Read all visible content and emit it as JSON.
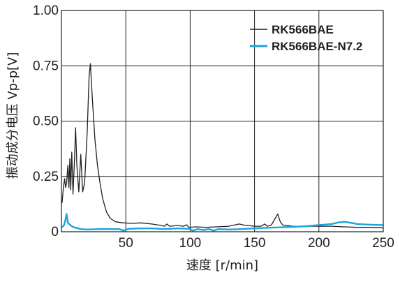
{
  "chart_data": {
    "type": "line",
    "title": "",
    "xlabel": "速度 [r/min]",
    "ylabel": "振动成分电压 Vp-p[V]",
    "xlim": [
      0,
      250
    ],
    "ylim": [
      0,
      1.0
    ],
    "x_ticks": [
      0,
      50,
      100,
      150,
      200,
      250
    ],
    "x_tick_labels": [
      "",
      "50",
      "100",
      "150",
      "200",
      "250"
    ],
    "y_ticks": [
      0,
      0.25,
      0.5,
      0.75,
      1.0
    ],
    "y_tick_labels": [
      "0",
      "0.25",
      "0.50",
      "0.75",
      "1.00"
    ],
    "grid": true,
    "legend_position": "top-right",
    "series": [
      {
        "name": "RK566BAE",
        "color": "#231f20",
        "points": [
          [
            0.5,
            0.13
          ],
          [
            1.5,
            0.2
          ],
          [
            2.5,
            0.24
          ],
          [
            3.2,
            0.2
          ],
          [
            4,
            0.22
          ],
          [
            5,
            0.3
          ],
          [
            5.8,
            0.2
          ],
          [
            6.5,
            0.33
          ],
          [
            7.2,
            0.19
          ],
          [
            8,
            0.36
          ],
          [
            9,
            0.17
          ],
          [
            10,
            0.3
          ],
          [
            11,
            0.47
          ],
          [
            12,
            0.3
          ],
          [
            13.5,
            0.18
          ],
          [
            15,
            0.35
          ],
          [
            16.5,
            0.18
          ],
          [
            18,
            0.22
          ],
          [
            20,
            0.45
          ],
          [
            21.5,
            0.7
          ],
          [
            22.5,
            0.76
          ],
          [
            24,
            0.6
          ],
          [
            26,
            0.42
          ],
          [
            28,
            0.3
          ],
          [
            30,
            0.22
          ],
          [
            32,
            0.15
          ],
          [
            35,
            0.09
          ],
          [
            38,
            0.06
          ],
          [
            42,
            0.045
          ],
          [
            48,
            0.04
          ],
          [
            55,
            0.038
          ],
          [
            62,
            0.04
          ],
          [
            70,
            0.035
          ],
          [
            76,
            0.03
          ],
          [
            80,
            0.025
          ],
          [
            82,
            0.035
          ],
          [
            84,
            0.025
          ],
          [
            90,
            0.028
          ],
          [
            95,
            0.025
          ],
          [
            97,
            0.032
          ],
          [
            99,
            0.02
          ],
          [
            105,
            0.022
          ],
          [
            112,
            0.02
          ],
          [
            120,
            0.022
          ],
          [
            130,
            0.025
          ],
          [
            138,
            0.035
          ],
          [
            142,
            0.03
          ],
          [
            150,
            0.025
          ],
          [
            155,
            0.025
          ],
          [
            158,
            0.035
          ],
          [
            160,
            0.025
          ],
          [
            163,
            0.03
          ],
          [
            166,
            0.06
          ],
          [
            168,
            0.08
          ],
          [
            170,
            0.045
          ],
          [
            172,
            0.03
          ],
          [
            180,
            0.025
          ],
          [
            190,
            0.025
          ],
          [
            200,
            0.025
          ],
          [
            210,
            0.025
          ],
          [
            220,
            0.022
          ],
          [
            230,
            0.02
          ],
          [
            240,
            0.02
          ],
          [
            250,
            0.018
          ]
        ]
      },
      {
        "name": "RK566BAE-N7.2",
        "color": "#1ba3de",
        "points": [
          [
            0.5,
            0.02
          ],
          [
            2,
            0.03
          ],
          [
            3,
            0.05
          ],
          [
            4,
            0.08
          ],
          [
            5,
            0.04
          ],
          [
            6,
            0.035
          ],
          [
            8,
            0.025
          ],
          [
            10,
            0.02
          ],
          [
            15,
            0.012
          ],
          [
            20,
            0.01
          ],
          [
            30,
            0.012
          ],
          [
            45,
            0.012
          ],
          [
            48,
            0.005
          ],
          [
            52,
            0.013
          ],
          [
            60,
            0.015
          ],
          [
            70,
            0.015
          ],
          [
            80,
            0.012
          ],
          [
            90,
            0.015
          ],
          [
            100,
            0.013
          ],
          [
            102,
            0.005
          ],
          [
            106,
            0.012
          ],
          [
            110,
            0.008
          ],
          [
            115,
            0.012
          ],
          [
            118,
            0.005
          ],
          [
            122,
            0.012
          ],
          [
            130,
            0.01
          ],
          [
            140,
            0.012
          ],
          [
            150,
            0.015
          ],
          [
            160,
            0.018
          ],
          [
            170,
            0.02
          ],
          [
            180,
            0.022
          ],
          [
            190,
            0.025
          ],
          [
            200,
            0.03
          ],
          [
            210,
            0.035
          ],
          [
            215,
            0.042
          ],
          [
            220,
            0.045
          ],
          [
            225,
            0.04
          ],
          [
            230,
            0.035
          ],
          [
            240,
            0.032
          ],
          [
            250,
            0.03
          ]
        ]
      }
    ]
  }
}
